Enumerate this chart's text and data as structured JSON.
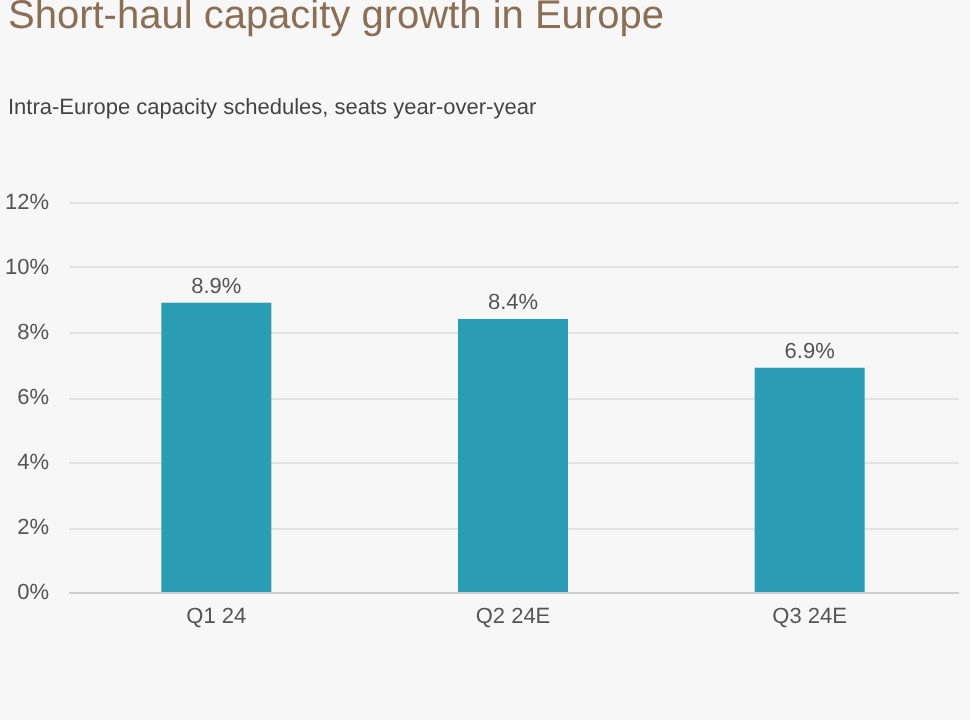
{
  "chart_data": {
    "type": "bar",
    "title": "Short-haul capacity growth in Europe",
    "subtitle": "Intra-Europe capacity schedules, seats year-over-year",
    "categories": [
      "Q1 24",
      "Q2 24E",
      "Q3 24E"
    ],
    "values": [
      8.9,
      8.4,
      6.9
    ],
    "color": "#2a9db5",
    "ylim": [
      0,
      12
    ],
    "yticks": [
      {
        "value": 0,
        "label": "0%"
      },
      {
        "value": 2,
        "label": "2%"
      },
      {
        "value": 4,
        "label": "4%"
      },
      {
        "value": 6,
        "label": "6%"
      },
      {
        "value": 8,
        "label": "8%"
      },
      {
        "value": 10,
        "label": "10%"
      },
      {
        "value": 12,
        "label": "12%"
      }
    ],
    "grid": "y",
    "value_labels": [
      "8.9%",
      "8.4%",
      "6.9%"
    ]
  }
}
